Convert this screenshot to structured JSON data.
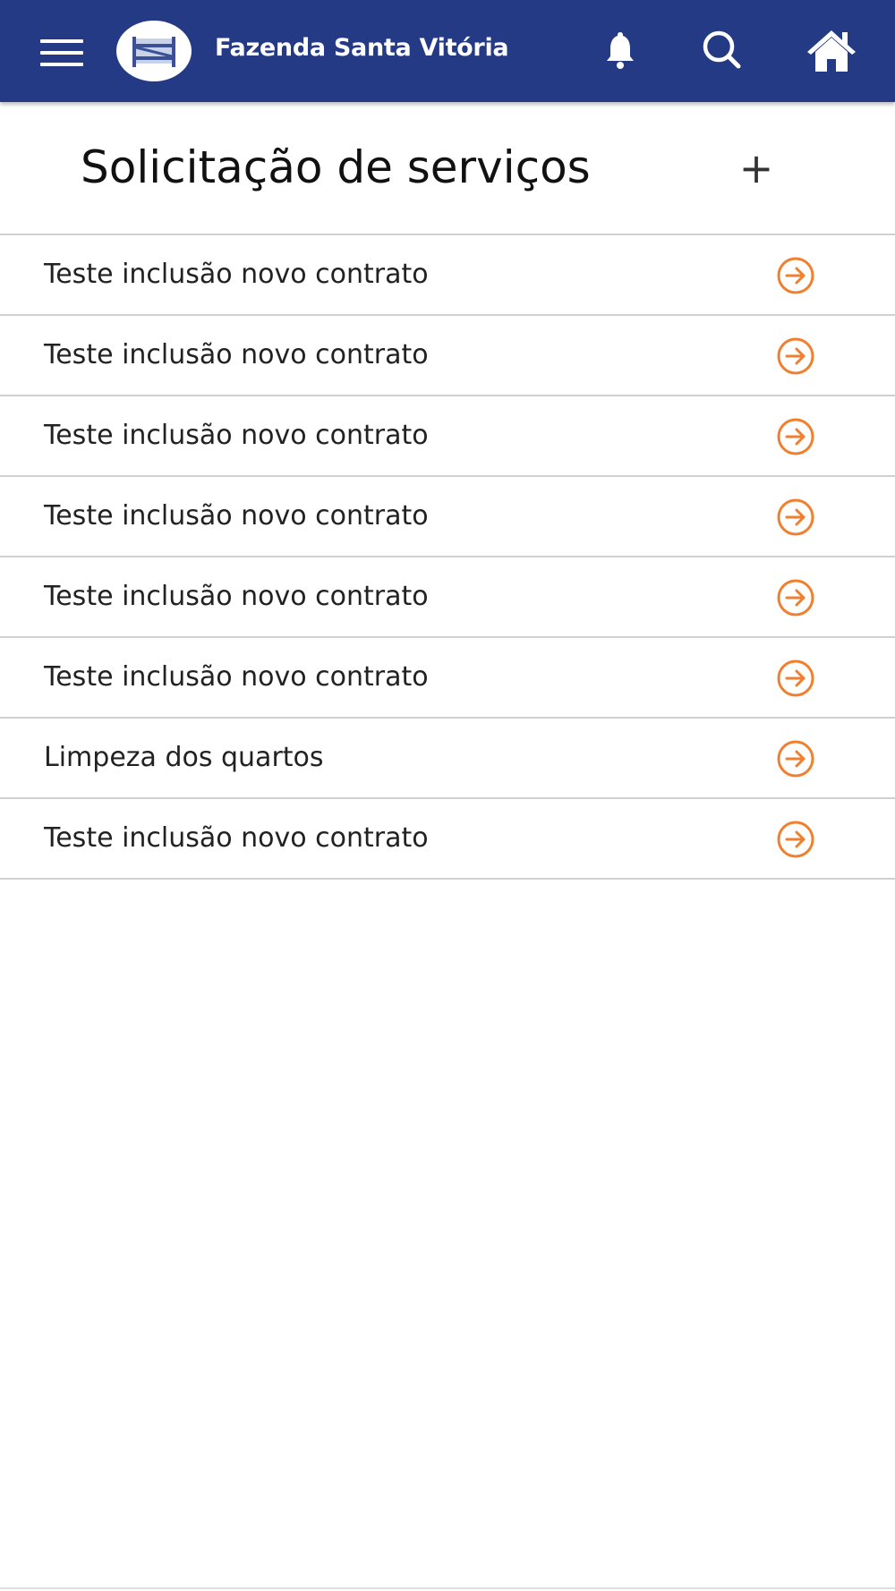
{
  "header": {
    "app_title": "Fazenda Santa Vitória",
    "icons": [
      "menu-icon",
      "logo",
      "bell-icon",
      "search-icon",
      "home-icon"
    ],
    "color": "#253a85"
  },
  "page": {
    "title": "Solicitação de serviços",
    "add_label": "+"
  },
  "list": {
    "accent_color": "#f08030",
    "items": [
      {
        "label": "Teste inclusão novo contrato"
      },
      {
        "label": "Teste inclusão novo contrato"
      },
      {
        "label": "Teste inclusão novo contrato"
      },
      {
        "label": "Teste inclusão novo contrato"
      },
      {
        "label": "Teste inclusão novo contrato"
      },
      {
        "label": "Teste inclusão novo contrato"
      },
      {
        "label": "Limpeza dos quartos"
      },
      {
        "label": "Teste inclusão novo contrato"
      }
    ]
  }
}
